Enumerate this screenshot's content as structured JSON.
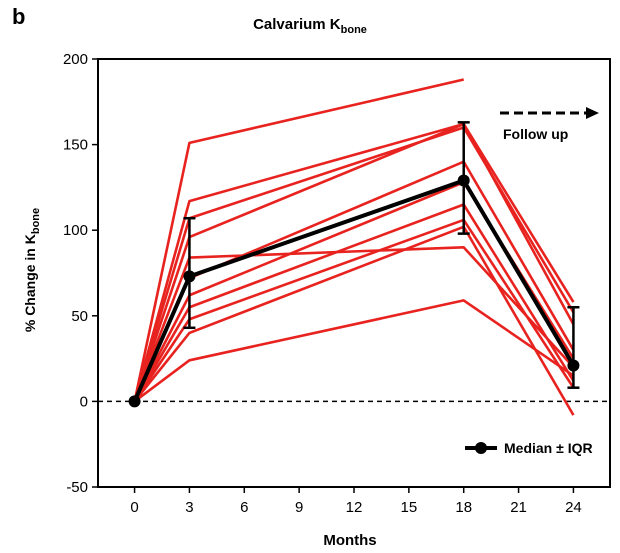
{
  "panel_letter": "b",
  "chart_data": {
    "type": "line",
    "title_main": "Calvarium K",
    "title_sub": "bone",
    "xlabel": "Months",
    "ylabel_main": "% Change in K",
    "ylabel_sub": "bone",
    "xlim": [
      -2,
      26
    ],
    "ylim": [
      -50,
      200
    ],
    "xticks": [
      0,
      3,
      6,
      9,
      12,
      15,
      18,
      21,
      24
    ],
    "yticks": [
      -50,
      0,
      50,
      100,
      150,
      200
    ],
    "reference_line_y": 0,
    "follow_up_label": "Follow up",
    "series": [
      {
        "color": "#e8231f",
        "x": [
          0,
          3,
          18,
          24
        ],
        "y": [
          0,
          151,
          188,
          null
        ]
      },
      {
        "color": "#e8231f",
        "x": [
          0,
          3,
          18,
          24
        ],
        "y": [
          0,
          117,
          162,
          58
        ]
      },
      {
        "color": "#e8231f",
        "x": [
          0,
          3,
          18,
          24
        ],
        "y": [
          0,
          107,
          160,
          52
        ]
      },
      {
        "color": "#e8231f",
        "x": [
          0,
          3,
          18,
          24
        ],
        "y": [
          0,
          96,
          162,
          45
        ]
      },
      {
        "color": "#e8231f",
        "x": [
          0,
          3,
          18,
          24
        ],
        "y": [
          0,
          84,
          90,
          20
        ]
      },
      {
        "color": "#e8231f",
        "x": [
          0,
          3,
          18,
          24
        ],
        "y": [
          0,
          72,
          140,
          30
        ]
      },
      {
        "color": "#e8231f",
        "x": [
          0,
          3,
          18,
          24
        ],
        "y": [
          0,
          62,
          128,
          25
        ]
      },
      {
        "color": "#e8231f",
        "x": [
          0,
          3,
          18,
          24
        ],
        "y": [
          0,
          55,
          115,
          12
        ]
      },
      {
        "color": "#e8231f",
        "x": [
          0,
          3,
          18,
          24
        ],
        "y": [
          0,
          48,
          106,
          8
        ]
      },
      {
        "color": "#e8231f",
        "x": [
          0,
          3,
          18,
          24
        ],
        "y": [
          0,
          40,
          102,
          -8
        ]
      },
      {
        "color": "#e8231f",
        "x": [
          0,
          3,
          18,
          24
        ],
        "y": [
          0,
          24,
          59,
          15
        ]
      }
    ],
    "median": {
      "name": "Median ± IQR",
      "color": "#000000",
      "x": [
        0,
        3,
        18,
        24
      ],
      "y": [
        0,
        73,
        129,
        21
      ],
      "q1": [
        0,
        43,
        98,
        8
      ],
      "q3": [
        0,
        107,
        163,
        55
      ]
    }
  }
}
